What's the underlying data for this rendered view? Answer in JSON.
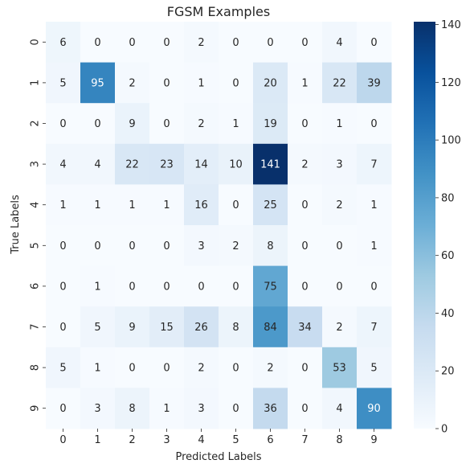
{
  "chart_data": {
    "type": "heatmap",
    "title": "FGSM Examples",
    "xlabel": "Predicted Labels",
    "ylabel": "True Labels",
    "x_categories": [
      "0",
      "1",
      "2",
      "3",
      "4",
      "5",
      "6",
      "7",
      "8",
      "9"
    ],
    "y_categories": [
      "0",
      "1",
      "2",
      "3",
      "4",
      "5",
      "6",
      "7",
      "8",
      "9"
    ],
    "values": [
      [
        6,
        0,
        0,
        0,
        2,
        0,
        0,
        0,
        4,
        0
      ],
      [
        5,
        95,
        2,
        0,
        1,
        0,
        20,
        1,
        22,
        39
      ],
      [
        0,
        0,
        9,
        0,
        2,
        1,
        19,
        0,
        1,
        0
      ],
      [
        4,
        4,
        22,
        23,
        14,
        10,
        141,
        2,
        3,
        7
      ],
      [
        1,
        1,
        1,
        1,
        16,
        0,
        25,
        0,
        2,
        1
      ],
      [
        0,
        0,
        0,
        0,
        3,
        2,
        8,
        0,
        0,
        1
      ],
      [
        0,
        1,
        0,
        0,
        0,
        0,
        75,
        0,
        0,
        0
      ],
      [
        0,
        5,
        9,
        15,
        26,
        8,
        84,
        34,
        2,
        7
      ],
      [
        5,
        1,
        0,
        0,
        2,
        0,
        2,
        0,
        53,
        5
      ],
      [
        0,
        3,
        8,
        1,
        3,
        0,
        36,
        0,
        4,
        90
      ]
    ],
    "colormap": "Blues",
    "vmin": 0,
    "vmax": 141,
    "colorbar_ticks": [
      0,
      20,
      40,
      60,
      80,
      100,
      120,
      140
    ],
    "annotations": true
  }
}
